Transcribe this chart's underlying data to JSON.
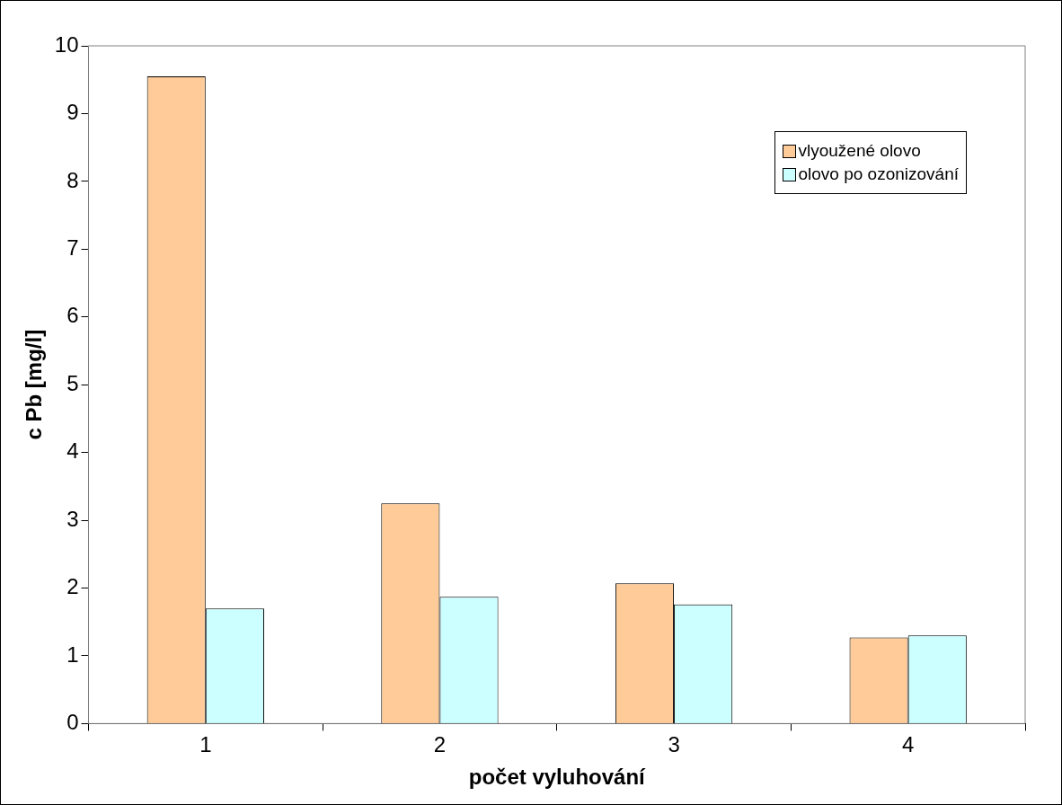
{
  "chart_data": {
    "type": "bar",
    "xlabel": "počet vyluhování",
    "ylabel": "c Pb [mg/l]",
    "categories": [
      "1",
      "2",
      "3",
      "4"
    ],
    "series": [
      {
        "name": "vlyoužené olovo",
        "color": "#ffcc99",
        "values": [
          9.55,
          3.25,
          2.07,
          1.27
        ]
      },
      {
        "name": "olovo po ozonizování",
        "color": "#ccffff",
        "values": [
          1.7,
          1.87,
          1.76,
          1.3
        ]
      }
    ],
    "ylim": [
      0,
      10
    ],
    "yticks": [
      0,
      1,
      2,
      3,
      4,
      5,
      6,
      7,
      8,
      9,
      10
    ],
    "grid": false,
    "legend": "top right"
  }
}
